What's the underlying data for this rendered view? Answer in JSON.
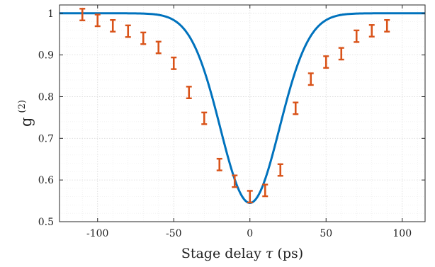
{
  "chart_data": {
    "type": "scatter",
    "xlabel_main": "Stage delay",
    "xlabel_symbol": "τ",
    "xlabel_unit": "(ps)",
    "ylabel_main": "g",
    "ylabel_sup": "(2)",
    "xlim": [
      -125,
      115
    ],
    "ylim": [
      0.5,
      1.02
    ],
    "x_ticks": [
      -100,
      -50,
      0,
      50,
      100
    ],
    "x_tick_labels": [
      "-100",
      "-50",
      "0",
      "50",
      "100"
    ],
    "y_ticks": [
      0.5,
      0.6,
      0.7,
      0.8,
      0.9,
      1.0
    ],
    "y_tick_labels": [
      "0.5",
      "0.6",
      "0.7",
      "0.8",
      "0.9",
      "1"
    ],
    "grid": true,
    "minor_grid": true,
    "series": [
      {
        "kind": "errorbar",
        "color": "#d95319",
        "x": [
          -110,
          -100,
          -90,
          -80,
          -70,
          -60,
          -50,
          -40,
          -30,
          -20,
          -10,
          0,
          10,
          20,
          30,
          40,
          50,
          60,
          70,
          80,
          90
        ],
        "y": [
          0.997,
          0.983,
          0.97,
          0.957,
          0.94,
          0.918,
          0.88,
          0.81,
          0.748,
          0.637,
          0.597,
          0.56,
          0.575,
          0.624,
          0.772,
          0.842,
          0.883,
          0.903,
          0.945,
          0.958,
          0.97
        ],
        "err": [
          0.014,
          0.014,
          0.014,
          0.014,
          0.014,
          0.014,
          0.014,
          0.014,
          0.014,
          0.014,
          0.014,
          0.014,
          0.014,
          0.014,
          0.014,
          0.014,
          0.014,
          0.014,
          0.014,
          0.014,
          0.014
        ]
      },
      {
        "kind": "fit-curve",
        "color": "#0072bd",
        "function": "1 - 0.455 * exp(-(x/26)^2 * 0.9)"
      }
    ]
  }
}
